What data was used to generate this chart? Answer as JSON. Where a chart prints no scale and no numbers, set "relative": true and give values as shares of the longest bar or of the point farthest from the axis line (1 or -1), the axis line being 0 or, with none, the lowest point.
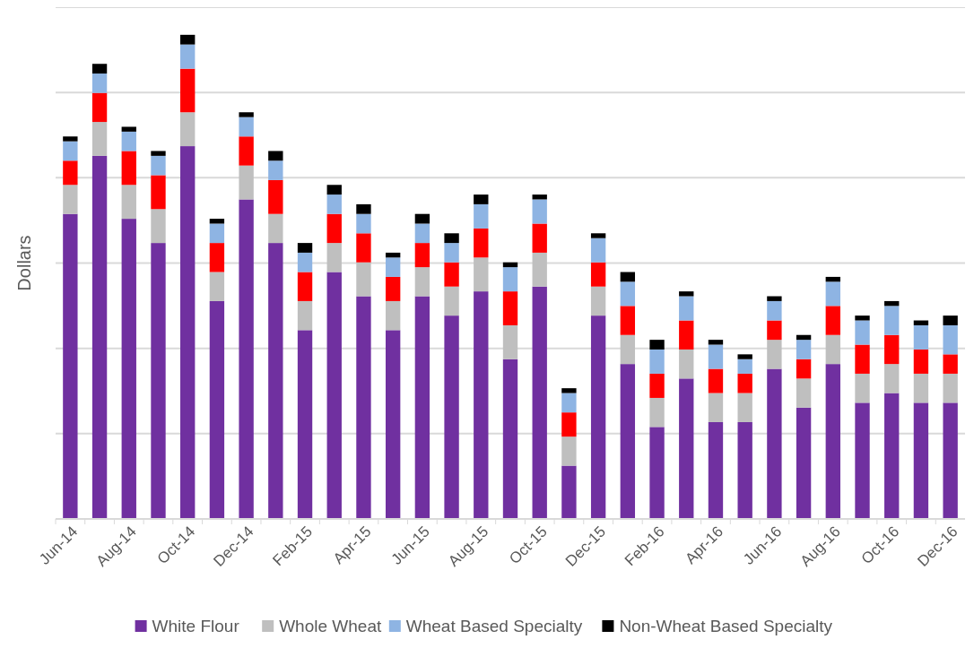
{
  "chart_data": {
    "type": "bar",
    "stacked": true,
    "relative": true,
    "ylabel": "Dollars",
    "grid": "y",
    "legend": "bottom",
    "categories": [
      "Jun-14",
      null,
      "Aug-14",
      null,
      "Oct-14",
      null,
      "Dec-14",
      null,
      "Feb-15",
      null,
      "Apr-15",
      null,
      "Jun-15",
      null,
      "Aug-15",
      null,
      "Oct-15",
      null,
      "Dec-15",
      null,
      "Feb-16",
      null,
      "Apr-16",
      null,
      "Jun-16",
      null,
      "Aug-16",
      null,
      "Oct-16",
      null,
      "Dec-16"
    ],
    "series": [
      {
        "name": "White Flour",
        "color": "#7030a0",
        "values": [
          0.63,
          0.75,
          0.62,
          0.57,
          0.77,
          0.45,
          0.66,
          0.57,
          0.39,
          0.51,
          0.46,
          0.39,
          0.46,
          0.42,
          0.47,
          0.33,
          0.48,
          0.11,
          0.42,
          0.32,
          0.19,
          0.29,
          0.2,
          0.2,
          0.31,
          0.23,
          0.32,
          0.24,
          0.26,
          0.24,
          0.24
        ]
      },
      {
        "name": "Whole Wheat",
        "color": "#bfbfbf",
        "values": [
          0.06,
          0.07,
          0.07,
          0.07,
          0.07,
          0.06,
          0.07,
          0.06,
          0.06,
          0.06,
          0.07,
          0.06,
          0.06,
          0.06,
          0.07,
          0.07,
          0.07,
          0.06,
          0.06,
          0.06,
          0.06,
          0.06,
          0.06,
          0.06,
          0.06,
          0.06,
          0.06,
          0.06,
          0.06,
          0.06,
          0.06
        ]
      },
      {
        "color": "#ff0000",
        "values": [
          0.05,
          0.06,
          0.07,
          0.07,
          0.09,
          0.06,
          0.06,
          0.07,
          0.06,
          0.06,
          0.06,
          0.05,
          0.05,
          0.05,
          0.06,
          0.07,
          0.06,
          0.05,
          0.05,
          0.06,
          0.05,
          0.06,
          0.05,
          0.04,
          0.04,
          0.04,
          0.06,
          0.06,
          0.06,
          0.05,
          0.04
        ]
      },
      {
        "name": "Wheat Based Specialty",
        "color": "#8eb4e3",
        "values": [
          0.04,
          0.04,
          0.04,
          0.04,
          0.05,
          0.04,
          0.04,
          0.04,
          0.04,
          0.04,
          0.04,
          0.04,
          0.04,
          0.04,
          0.05,
          0.05,
          0.05,
          0.04,
          0.05,
          0.05,
          0.05,
          0.05,
          0.05,
          0.03,
          0.04,
          0.04,
          0.05,
          0.05,
          0.06,
          0.05,
          0.06
        ]
      },
      {
        "name": "Non-Wheat Based Specialty",
        "color": "#000000",
        "values": [
          0.01,
          0.02,
          0.01,
          0.01,
          0.02,
          0.01,
          0.01,
          0.02,
          0.02,
          0.02,
          0.02,
          0.01,
          0.02,
          0.02,
          0.02,
          0.01,
          0.01,
          0.01,
          0.01,
          0.02,
          0.02,
          0.01,
          0.01,
          0.01,
          0.01,
          0.01,
          0.01,
          0.01,
          0.01,
          0.01,
          0.02
        ]
      }
    ]
  }
}
